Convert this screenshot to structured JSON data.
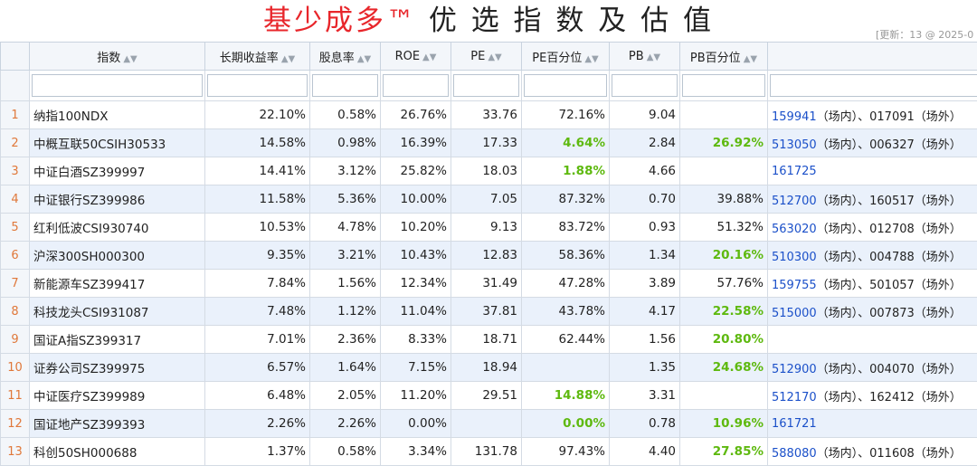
{
  "title": {
    "main_red": "基少成多™",
    "main_dark": " 优 选 指 数 及 估 值"
  },
  "update_text": "[更新：13 @ 2025-0",
  "headers": [
    "指数",
    "长期收益率",
    "股息率",
    "ROE",
    "PE",
    "PE百分位",
    "PB",
    "PB百分位",
    ""
  ],
  "rows": [
    {
      "idx": "1",
      "name": "纳指100NDX",
      "ret": "22.10%",
      "div": "0.58%",
      "roe": "26.76%",
      "pe": "33.76",
      "pep": "72.16%",
      "pe_hi": false,
      "pb": "9.04",
      "pbp": "",
      "pb_hi": false,
      "code": "159941",
      "rest": "（场内）、017091（场外）"
    },
    {
      "idx": "2",
      "name": "中概互联50CSIH30533",
      "ret": "14.58%",
      "div": "0.98%",
      "roe": "16.39%",
      "pe": "17.33",
      "pep": "4.64%",
      "pe_hi": true,
      "pb": "2.84",
      "pbp": "26.92%",
      "pb_hi": true,
      "code": "513050",
      "rest": "（场内）、006327（场外）"
    },
    {
      "idx": "3",
      "name": "中证白酒SZ399997",
      "ret": "14.41%",
      "div": "3.12%",
      "roe": "25.82%",
      "pe": "18.03",
      "pep": "1.88%",
      "pe_hi": true,
      "pb": "4.66",
      "pbp": "",
      "pb_hi": false,
      "code": "161725",
      "rest": ""
    },
    {
      "idx": "4",
      "name": "中证银行SZ399986",
      "ret": "11.58%",
      "div": "5.36%",
      "roe": "10.00%",
      "pe": "7.05",
      "pep": "87.32%",
      "pe_hi": false,
      "pb": "0.70",
      "pbp": "39.88%",
      "pb_hi": false,
      "code": "512700",
      "rest": "（场内）、160517（场外）"
    },
    {
      "idx": "5",
      "name": "红利低波CSI930740",
      "ret": "10.53%",
      "div": "4.78%",
      "roe": "10.20%",
      "pe": "9.13",
      "pep": "83.72%",
      "pe_hi": false,
      "pb": "0.93",
      "pbp": "51.32%",
      "pb_hi": false,
      "code": "563020",
      "rest": "（场内）、012708（场外）"
    },
    {
      "idx": "6",
      "name": "沪深300SH000300",
      "ret": "9.35%",
      "div": "3.21%",
      "roe": "10.43%",
      "pe": "12.83",
      "pep": "58.36%",
      "pe_hi": false,
      "pb": "1.34",
      "pbp": "20.16%",
      "pb_hi": true,
      "code": "510300",
      "rest": "（场内）、004788（场外）"
    },
    {
      "idx": "7",
      "name": "新能源车SZ399417",
      "ret": "7.84%",
      "div": "1.56%",
      "roe": "12.34%",
      "pe": "31.49",
      "pep": "47.28%",
      "pe_hi": false,
      "pb": "3.89",
      "pbp": "57.76%",
      "pb_hi": false,
      "code": "159755",
      "rest": "（场内）、501057（场外）"
    },
    {
      "idx": "8",
      "name": "科技龙头CSI931087",
      "ret": "7.48%",
      "div": "1.12%",
      "roe": "11.04%",
      "pe": "37.81",
      "pep": "43.78%",
      "pe_hi": false,
      "pb": "4.17",
      "pbp": "22.58%",
      "pb_hi": true,
      "code": "515000",
      "rest": "（场内）、007873（场外）"
    },
    {
      "idx": "9",
      "name": "国证A指SZ399317",
      "ret": "7.01%",
      "div": "2.36%",
      "roe": "8.33%",
      "pe": "18.71",
      "pep": "62.44%",
      "pe_hi": false,
      "pb": "1.56",
      "pbp": "20.80%",
      "pb_hi": true,
      "code": "",
      "rest": ""
    },
    {
      "idx": "10",
      "name": "证券公司SZ399975",
      "ret": "6.57%",
      "div": "1.64%",
      "roe": "7.15%",
      "pe": "18.94",
      "pep": "",
      "pe_hi": false,
      "pb": "1.35",
      "pbp": "24.68%",
      "pb_hi": true,
      "code": "512900",
      "rest": "（场内）、004070（场外）"
    },
    {
      "idx": "11",
      "name": "中证医疗SZ399989",
      "ret": "6.48%",
      "div": "2.05%",
      "roe": "11.20%",
      "pe": "29.51",
      "pep": "14.88%",
      "pe_hi": true,
      "pb": "3.31",
      "pbp": "",
      "pb_hi": false,
      "code": "512170",
      "rest": "（场内）、162412（场外）"
    },
    {
      "idx": "12",
      "name": "国证地产SZ399393",
      "ret": "2.26%",
      "div": "2.26%",
      "roe": "0.00%",
      "pe": "",
      "pep": "0.00%",
      "pe_hi": true,
      "pb": "0.78",
      "pbp": "10.96%",
      "pb_hi": true,
      "code": "161721",
      "rest": ""
    },
    {
      "idx": "13",
      "name": "科创50SH000688",
      "ret": "1.37%",
      "div": "0.58%",
      "roe": "3.34%",
      "pe": "131.78",
      "pep": "97.43%",
      "pe_hi": false,
      "pb": "4.40",
      "pbp": "27.85%",
      "pb_hi": true,
      "code": "588080",
      "rest": "（场内）、011608（场外）"
    }
  ],
  "colors": {
    "title_red": "#e8262b",
    "highlight_green": "#5eb90f",
    "link_blue": "#1b50c9",
    "row_index": "#e0783a",
    "alt_row": "#eaf1fb"
  }
}
